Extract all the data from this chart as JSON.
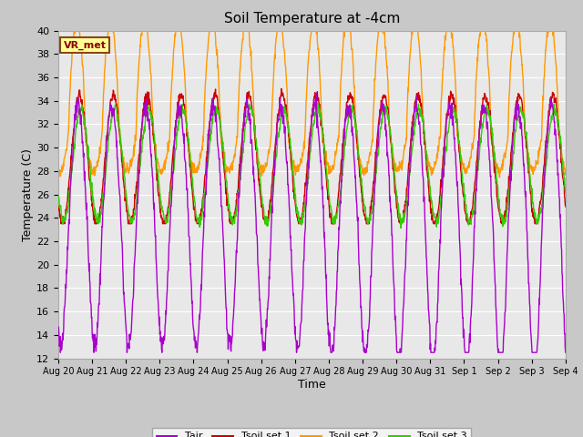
{
  "title": "Soil Temperature at -4cm",
  "xlabel": "Time",
  "ylabel": "Temperature (C)",
  "ylim": [
    12,
    40
  ],
  "yticks": [
    12,
    14,
    16,
    18,
    20,
    22,
    24,
    26,
    28,
    30,
    32,
    34,
    36,
    38,
    40
  ],
  "colors": {
    "Tair": "#aa00cc",
    "Tsoil1": "#cc0000",
    "Tsoil2": "#ff9900",
    "Tsoil3": "#33cc00"
  },
  "legend_labels": [
    "Tair",
    "Tsoil set 1",
    "Tsoil set 2",
    "Tsoil set 3"
  ],
  "annotation_text": "VR_met",
  "n_days": 15,
  "points_per_day": 96,
  "day_labels": [
    "Aug 20",
    "Aug 21",
    "Aug 22",
    "Aug 23",
    "Aug 24",
    "Aug 25",
    "Aug 26",
    "Aug 27",
    "Aug 28",
    "Aug 29",
    "Aug 30",
    "Aug 31",
    "Sep 1",
    "Sep 2",
    "Sep 3",
    "Sep 4"
  ]
}
